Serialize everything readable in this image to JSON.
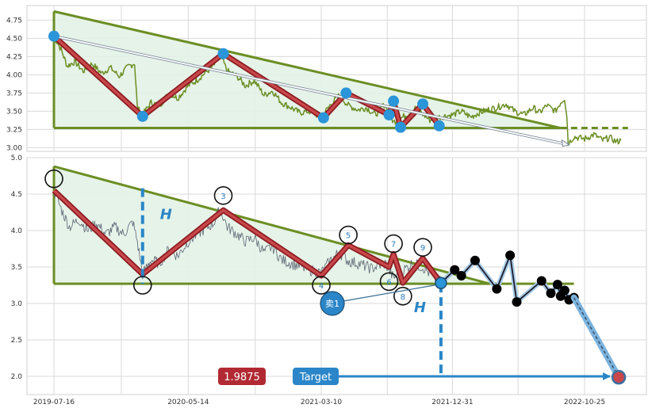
{
  "chart_data": [
    {
      "type": "line",
      "panel": "top",
      "ylim": [
        2.95,
        4.95
      ],
      "y_ticks": [
        "4.75",
        "4.50",
        "4.25",
        "4.00",
        "3.75",
        "3.50",
        "3.25",
        "3.00"
      ],
      "xlim": [
        "2019-07-16",
        "2023-01-31"
      ],
      "price_series": [
        [
          "2019-07-16",
          4.53
        ],
        [
          "2019-08-01",
          4.35
        ],
        [
          "2019-08-15",
          4.12
        ],
        [
          "2019-09-01",
          4.18
        ],
        [
          "2019-09-20",
          4.05
        ],
        [
          "2019-10-10",
          4.15
        ],
        [
          "2019-11-01",
          4.02
        ],
        [
          "2019-11-20",
          4.1
        ],
        [
          "2019-12-10",
          3.98
        ],
        [
          "2020-01-01",
          4.12
        ],
        [
          "2020-01-14",
          4.16
        ],
        [
          "2020-01-20",
          3.55
        ],
        [
          "2020-02-01",
          3.45
        ],
        [
          "2020-02-20",
          3.62
        ],
        [
          "2020-03-10",
          3.58
        ],
        [
          "2020-04-01",
          3.75
        ],
        [
          "2020-04-20",
          3.68
        ],
        [
          "2020-05-14",
          3.85
        ],
        [
          "2020-06-01",
          3.92
        ],
        [
          "2020-06-20",
          4.02
        ],
        [
          "2020-07-10",
          4.12
        ],
        [
          "2020-07-25",
          4.28
        ],
        [
          "2020-08-10",
          4.05
        ],
        [
          "2020-09-01",
          3.98
        ],
        [
          "2020-09-20",
          3.85
        ],
        [
          "2020-10-10",
          3.92
        ],
        [
          "2020-11-01",
          3.72
        ],
        [
          "2020-11-20",
          3.78
        ],
        [
          "2020-12-10",
          3.62
        ],
        [
          "2021-01-01",
          3.55
        ],
        [
          "2021-01-20",
          3.48
        ],
        [
          "2021-02-10",
          3.5
        ],
        [
          "2021-03-10",
          3.42
        ],
        [
          "2021-04-01",
          3.6
        ],
        [
          "2021-04-20",
          3.72
        ],
        [
          "2021-05-10",
          3.58
        ],
        [
          "2021-06-01",
          3.52
        ],
        [
          "2021-06-20",
          3.55
        ],
        [
          "2021-07-10",
          3.45
        ],
        [
          "2021-08-01",
          3.6
        ],
        [
          "2021-08-20",
          3.35
        ],
        [
          "2021-09-10",
          3.42
        ],
        [
          "2021-09-25",
          3.48
        ],
        [
          "2021-10-10",
          3.55
        ],
        [
          "2021-10-25",
          3.46
        ],
        [
          "2021-11-10",
          3.38
        ],
        [
          "2021-12-01",
          3.42
        ],
        [
          "2021-12-31",
          3.45
        ],
        [
          "2022-01-20",
          3.5
        ],
        [
          "2022-02-10",
          3.42
        ],
        [
          "2022-03-01",
          3.48
        ],
        [
          "2022-03-20",
          3.52
        ],
        [
          "2022-04-10",
          3.55
        ],
        [
          "2022-05-01",
          3.6
        ],
        [
          "2022-05-20",
          3.5
        ],
        [
          "2022-06-10",
          3.45
        ],
        [
          "2022-07-01",
          3.55
        ],
        [
          "2022-07-15",
          3.48
        ],
        [
          "2022-08-01",
          3.58
        ],
        [
          "2022-08-20",
          3.5
        ],
        [
          "2022-09-01",
          3.62
        ],
        [
          "2022-09-10",
          3.68
        ],
        [
          "2022-09-15",
          3.45
        ],
        [
          "2022-09-18",
          3.06
        ],
        [
          "2022-10-01",
          3.15
        ],
        [
          "2022-10-25",
          3.12
        ],
        [
          "2022-11-15",
          3.18
        ],
        [
          "2022-12-05",
          3.1
        ],
        [
          "2022-12-20",
          3.14
        ],
        [
          "2023-01-05",
          3.08
        ],
        [
          "2023-01-15",
          3.1
        ]
      ],
      "triangle": {
        "top_left": [
          "2019-07-16",
          4.87
        ],
        "apex": [
          "2022-09-01",
          3.27
        ],
        "base": 3.27
      },
      "pivots": [
        [
          "2019-07-16",
          4.53
        ],
        [
          "2020-02-01",
          3.43
        ],
        [
          "2020-08-01",
          4.29
        ],
        [
          "2021-03-15",
          3.41
        ],
        [
          "2021-05-05",
          3.75
        ],
        [
          "2021-08-10",
          3.45
        ],
        [
          "2021-08-20",
          3.64
        ],
        [
          "2021-09-05",
          3.28
        ],
        [
          "2021-10-25",
          3.6
        ],
        [
          "2021-12-01",
          3.3
        ]
      ],
      "trend_arrow": {
        "from": [
          "2019-07-16",
          4.53
        ],
        "to": [
          "2022-09-20",
          3.04
        ]
      },
      "dashed_base": {
        "from": [
          "2022-09-01",
          3.27
        ],
        "to": [
          "2023-01-31",
          3.27
        ]
      }
    },
    {
      "type": "line",
      "panel": "bottom",
      "ylim": [
        1.75,
        5.0
      ],
      "y_ticks": [
        "5.0",
        "4.5",
        "4.0",
        "3.5",
        "3.0",
        "2.5",
        "2.0"
      ],
      "x_ticks": [
        "2019-07-16",
        "2020-05-14",
        "2021-03-10",
        "2021-12-31",
        "2022-10-25"
      ],
      "xlim": [
        "2019-07-16",
        "2023-01-31"
      ],
      "price_series": [
        [
          "2019-07-16",
          4.55
        ],
        [
          "2019-08-01",
          4.3
        ],
        [
          "2019-08-20",
          4.05
        ],
        [
          "2019-09-10",
          4.15
        ],
        [
          "2019-10-01",
          4.0
        ],
        [
          "2019-10-20",
          4.1
        ],
        [
          "2019-11-10",
          3.95
        ],
        [
          "2019-12-01",
          4.05
        ],
        [
          "2019-12-20",
          3.95
        ],
        [
          "2020-01-10",
          4.12
        ],
        [
          "2020-01-20",
          3.85
        ],
        [
          "2020-02-01",
          3.4
        ],
        [
          "2020-02-20",
          3.6
        ],
        [
          "2020-03-10",
          3.55
        ],
        [
          "2020-04-01",
          3.75
        ],
        [
          "2020-04-20",
          3.65
        ],
        [
          "2020-05-14",
          3.85
        ],
        [
          "2020-06-10",
          3.98
        ],
        [
          "2020-07-10",
          4.1
        ],
        [
          "2020-07-25",
          4.3
        ],
        [
          "2020-08-10",
          4.05
        ],
        [
          "2020-09-01",
          3.95
        ],
        [
          "2020-09-20",
          3.85
        ],
        [
          "2020-10-10",
          3.9
        ],
        [
          "2020-11-01",
          3.7
        ],
        [
          "2020-11-20",
          3.78
        ],
        [
          "2020-12-10",
          3.6
        ],
        [
          "2021-01-01",
          3.55
        ],
        [
          "2021-02-01",
          3.48
        ],
        [
          "2021-03-10",
          3.42
        ],
        [
          "2021-04-01",
          3.6
        ],
        [
          "2021-04-20",
          3.7
        ],
        [
          "2021-05-10",
          3.58
        ],
        [
          "2021-06-01",
          3.55
        ],
        [
          "2021-07-01",
          3.48
        ],
        [
          "2021-08-01",
          3.55
        ],
        [
          "2021-08-20",
          3.35
        ],
        [
          "2021-09-10",
          3.45
        ],
        [
          "2021-10-01",
          3.55
        ],
        [
          "2021-10-25",
          3.5
        ],
        [
          "2021-11-20",
          3.35
        ],
        [
          "2021-12-05",
          3.3
        ]
      ],
      "triangle": {
        "top_left": [
          "2019-07-16",
          4.88
        ],
        "apex": [
          "2022-03-25",
          3.27
        ],
        "base": 3.27
      },
      "wave_points": [
        [
          "2019-07-16",
          4.55
        ],
        [
          "2020-02-01",
          3.4
        ],
        [
          "2020-08-01",
          4.28
        ],
        [
          "2021-03-10",
          3.38
        ],
        [
          "2021-05-10",
          3.8
        ],
        [
          "2021-08-10",
          3.5
        ],
        [
          "2021-08-20",
          3.68
        ],
        [
          "2021-09-10",
          3.28
        ],
        [
          "2021-10-25",
          3.62
        ],
        [
          "2021-12-05",
          3.28
        ]
      ],
      "wave_labels": [
        {
          "label": "",
          "date": "2019-07-16",
          "y": 4.71
        },
        {
          "label": "",
          "date": "2020-02-01",
          "y": 3.25
        },
        {
          "label": "3",
          "date": "2020-08-01",
          "y": 4.48
        },
        {
          "label": "4",
          "date": "2021-03-10",
          "y": 3.25
        },
        {
          "label": "5",
          "date": "2021-05-10",
          "y": 3.94
        },
        {
          "label": "6",
          "date": "2021-08-10",
          "y": 3.3
        },
        {
          "label": "7",
          "date": "2021-08-20",
          "y": 3.82
        },
        {
          "label": "8",
          "date": "2021-09-10",
          "y": 3.1
        },
        {
          "label": "9",
          "date": "2021-10-25",
          "y": 3.77
        }
      ],
      "forecast_points": [
        [
          "2021-12-05",
          3.28
        ],
        [
          "2022-01-05",
          3.46
        ],
        [
          "2022-01-20",
          3.38
        ],
        [
          "2022-02-20",
          3.59
        ],
        [
          "2022-04-10",
          3.2
        ],
        [
          "2022-05-10",
          3.66
        ],
        [
          "2022-05-25",
          3.02
        ],
        [
          "2022-07-20",
          3.31
        ],
        [
          "2022-08-10",
          3.14
        ],
        [
          "2022-08-25",
          3.26
        ],
        [
          "2022-09-01",
          3.1
        ],
        [
          "2022-09-10",
          3.18
        ],
        [
          "2022-09-20",
          3.05
        ],
        [
          "2022-10-01",
          3.08
        ]
      ],
      "target_path": {
        "from": [
          "2022-10-01",
          3.08
        ],
        "to": [
          "2023-01-10",
          1.9875
        ]
      },
      "sell_marker": {
        "label": "卖1",
        "date": "2021-12-05",
        "y": 3.28
      },
      "h_letter": "H",
      "h_measure": {
        "date": "2020-02-01",
        "from": 4.58,
        "to": 3.27
      },
      "target_drop": {
        "date": "2021-12-05",
        "from": 3.27,
        "to": 1.99
      },
      "target_label": "Target",
      "target_value": "1.9875",
      "target_color": "#2a86c8",
      "value_badge_color": "#b12a33"
    }
  ],
  "colors": {
    "triangle": "#6b8e23",
    "triangle_fill": "#e3f2e7",
    "price_top": "#6b8e23",
    "price_bottom": "#5a6472",
    "wave_outer": "#8a1c20",
    "wave_inner": "#c9474b",
    "pivot_dot": "#2a95d8",
    "measure": "#2a86c8",
    "forecast_line": "#1b1b2a",
    "forecast_halo": "#a8cbe6"
  }
}
